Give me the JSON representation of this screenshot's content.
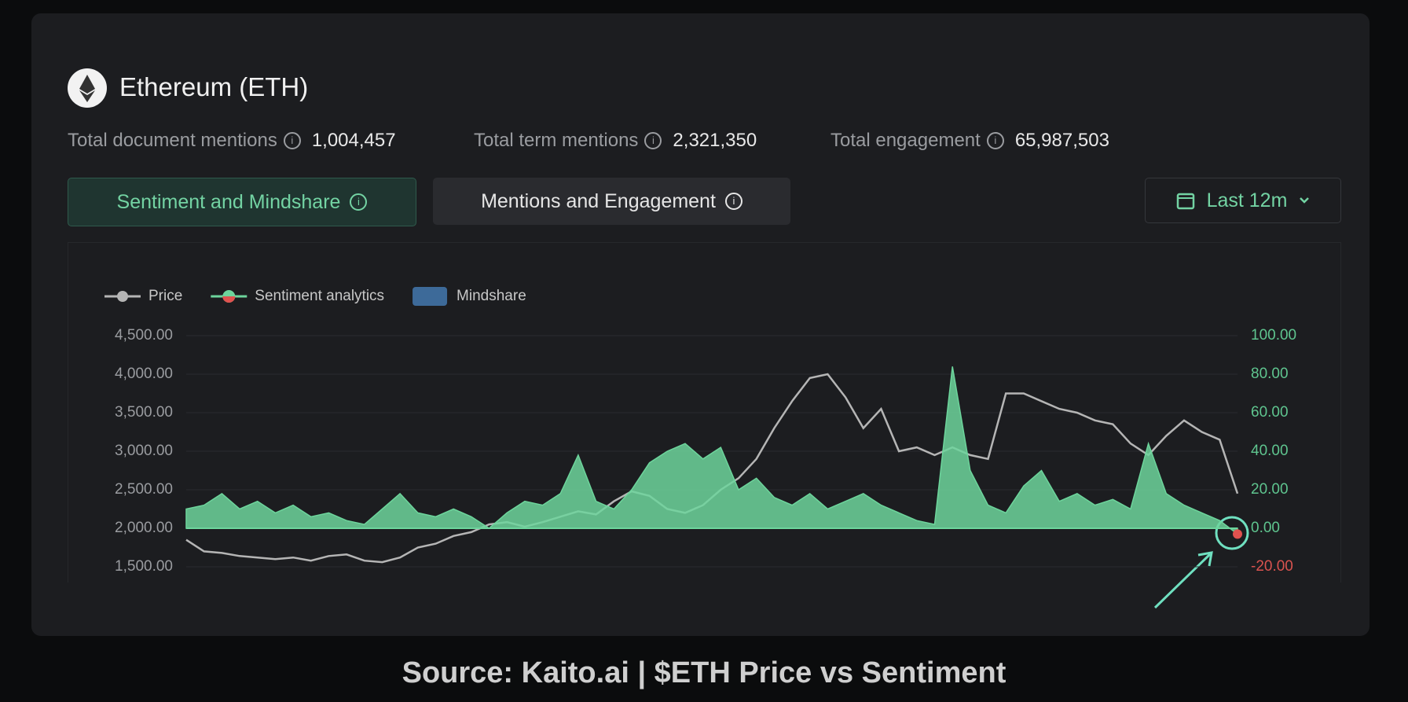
{
  "header": {
    "title": "Ethereum (ETH)"
  },
  "stats": [
    {
      "label": "Total document mentions",
      "value": "1,004,457"
    },
    {
      "label": "Total term mentions",
      "value": "2,321,350"
    },
    {
      "label": "Total engagement",
      "value": "65,987,503"
    }
  ],
  "tabs": [
    "Sentiment and Mindshare",
    "Mentions and Engagement"
  ],
  "range": "Last 12m",
  "caption": "Source: Kaito.ai | $ETH Price vs Sentiment",
  "chart_data": {
    "type": "line",
    "ylim": [
      1500,
      4500
    ],
    "yticks": [
      {
        "value": 4500,
        "label": "4,500.00"
      },
      {
        "value": 4000,
        "label": "4,000.00"
      },
      {
        "value": 3500,
        "label": "3,500.00"
      },
      {
        "value": 3000,
        "label": "3,000.00"
      },
      {
        "value": 2500,
        "label": "2,500.00"
      },
      {
        "value": 2000,
        "label": "2,000.00"
      },
      {
        "value": 1500,
        "label": "1,500.00"
      }
    ],
    "y2lim": [
      -20,
      100
    ],
    "y2ticks": [
      {
        "value": 100,
        "label": "100.00"
      },
      {
        "value": 80,
        "label": "80.00"
      },
      {
        "value": 60,
        "label": "60.00"
      },
      {
        "value": 40,
        "label": "40.00"
      },
      {
        "value": 20,
        "label": "20.00"
      },
      {
        "value": 0,
        "label": "0.00"
      },
      {
        "value": -20,
        "label": "-20.00"
      }
    ],
    "grid": true,
    "series": [
      {
        "name": "Price",
        "color": "#b5b5b5",
        "values": [
          1850,
          1700,
          1680,
          1640,
          1620,
          1600,
          1620,
          1580,
          1640,
          1660,
          1580,
          1560,
          1620,
          1750,
          1800,
          1900,
          1950,
          2050,
          2080,
          2020,
          2080,
          2150,
          2220,
          2180,
          2350,
          2480,
          2420,
          2250,
          2200,
          2300,
          2500,
          2650,
          2900,
          3300,
          3650,
          3950,
          4000,
          3700,
          3300,
          3550,
          3000,
          3050,
          2950,
          3050,
          2950,
          2900,
          3750,
          3750,
          3650,
          3550,
          3500,
          3400,
          3350,
          3100,
          2950,
          3200,
          3400,
          3250,
          3150,
          2450
        ]
      },
      {
        "name": "Sentiment analytics",
        "color": "#6dd59c",
        "axis": "y2",
        "area": true,
        "values": [
          10,
          12,
          18,
          10,
          14,
          8,
          12,
          6,
          8,
          4,
          2,
          10,
          18,
          8,
          6,
          10,
          6,
          0,
          8,
          14,
          12,
          18,
          38,
          14,
          10,
          20,
          34,
          40,
          44,
          36,
          42,
          20,
          26,
          16,
          12,
          18,
          10,
          14,
          18,
          12,
          8,
          4,
          2,
          84,
          30,
          12,
          8,
          22,
          30,
          14,
          18,
          12,
          15,
          10,
          44,
          18,
          12,
          8,
          4,
          -3
        ]
      },
      {
        "name": "Mindshare",
        "color": "#3d6a99",
        "values": [
          null,
          null,
          null,
          null,
          null,
          null,
          null,
          null,
          null,
          null,
          null,
          null,
          null,
          null,
          null,
          null,
          null,
          null,
          null,
          null,
          null,
          null,
          null,
          null,
          null,
          null,
          null,
          null,
          null,
          null,
          null,
          null,
          null,
          null,
          null,
          null,
          null,
          null,
          null,
          null,
          null,
          null,
          null,
          null,
          null,
          null,
          null,
          null,
          null,
          null,
          null,
          null,
          null,
          null,
          null,
          null,
          null,
          null,
          null,
          null
        ]
      }
    ]
  }
}
